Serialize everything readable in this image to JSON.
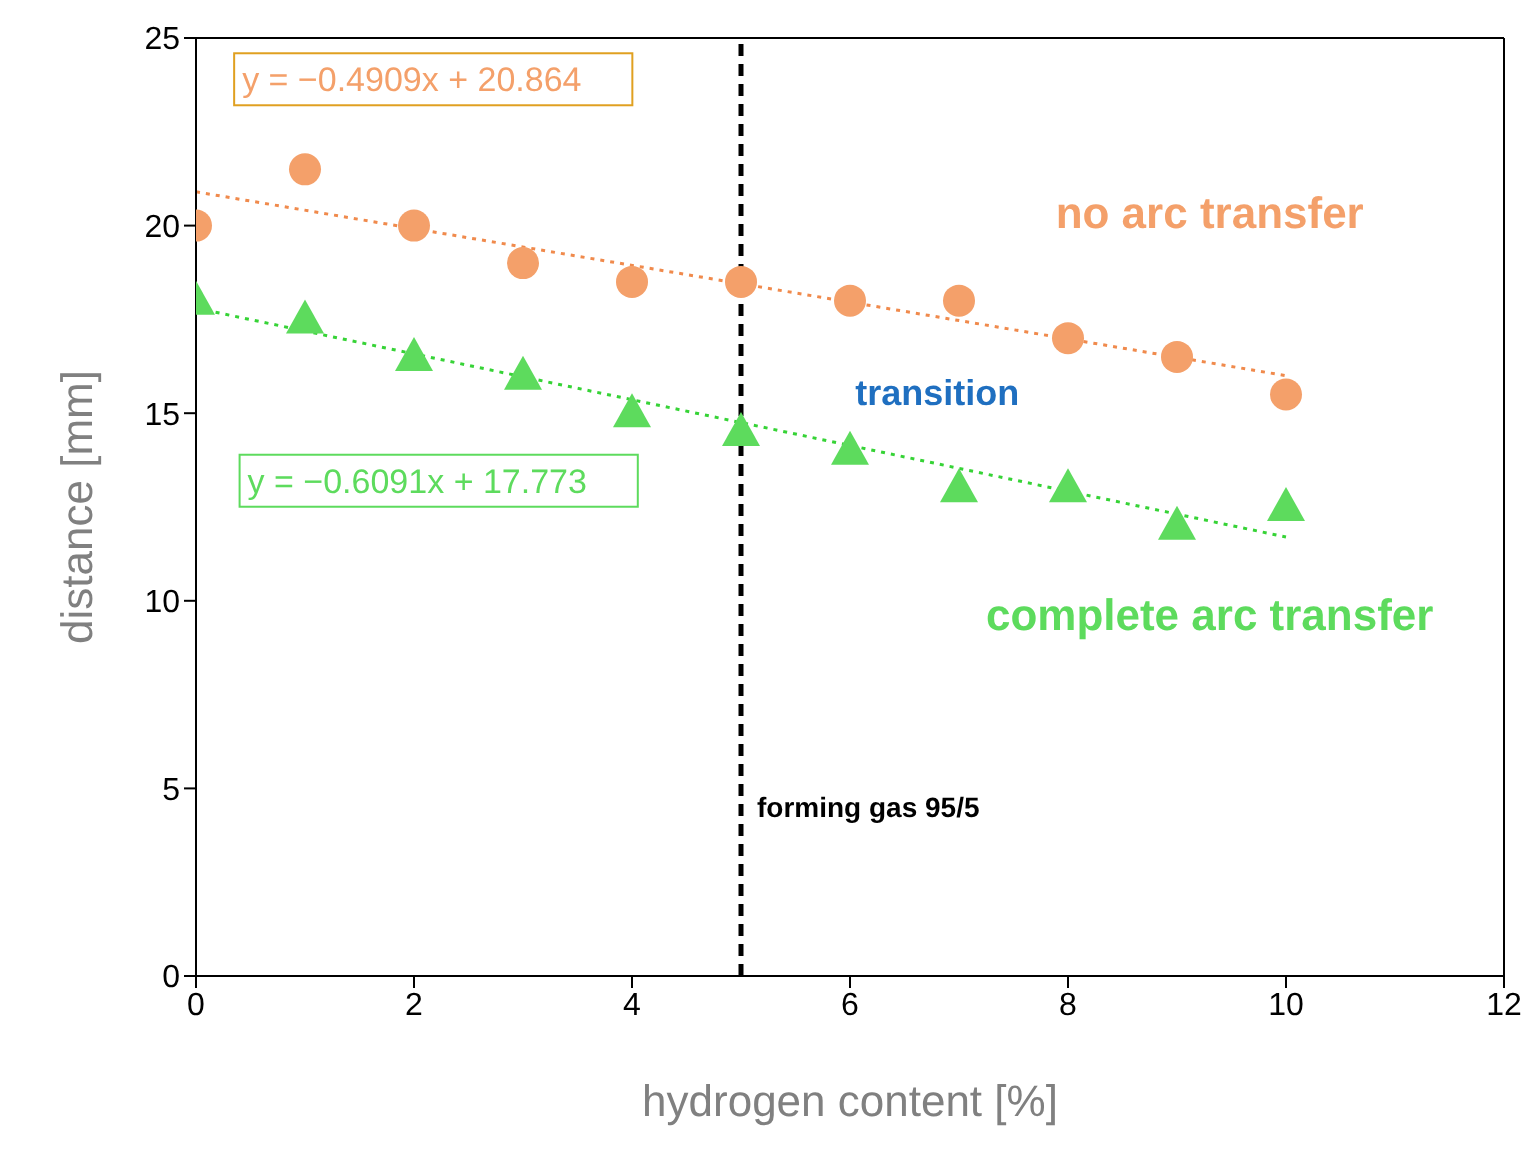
{
  "chart_data": {
    "type": "scatter",
    "xlabel": "hydrogen content [%]",
    "ylabel": "distance [mm]",
    "xlim": [
      0,
      12
    ],
    "xticks": [
      0,
      2,
      4,
      6,
      8,
      10,
      12
    ],
    "ylim": [
      0,
      25
    ],
    "yticks": [
      0,
      5,
      10,
      15,
      20,
      25
    ],
    "series": [
      {
        "marker": "circle",
        "color": "#f4a06a",
        "x": [
          0,
          1,
          2,
          3,
          4,
          5,
          6,
          7,
          8,
          9,
          10
        ],
        "values": [
          20,
          21.5,
          20,
          19,
          18.5,
          18.5,
          18,
          18,
          17,
          16.5,
          15.5
        ]
      },
      {
        "marker": "triangle",
        "color": "#5ddb5d",
        "x": [
          0,
          1,
          2,
          3,
          4,
          5,
          6,
          7,
          8,
          9,
          10
        ],
        "values": [
          18,
          17.5,
          16.5,
          16,
          15,
          14.5,
          14,
          13,
          13,
          12,
          12.5
        ]
      },
      {
        "type": "line",
        "marker": "none",
        "line_style": "dotted",
        "color": "#f08a4c",
        "x": [
          0,
          10
        ],
        "values": [
          20.9,
          16.0
        ]
      },
      {
        "type": "line",
        "marker": "none",
        "line_style": "dotted",
        "color": "#36d336",
        "x": [
          0,
          10
        ],
        "values": [
          17.8,
          11.7
        ]
      }
    ],
    "ref_lines": [
      {
        "axis": "x",
        "value": 5,
        "label": "forming gas 95/5",
        "color": "#000000",
        "line_style": "dashed"
      }
    ],
    "annotations": [
      "y = −0.4909x + 20.864",
      "no arc transfer",
      "transition",
      "y = −0.6091x + 17.773",
      "complete arc transfer"
    ]
  }
}
